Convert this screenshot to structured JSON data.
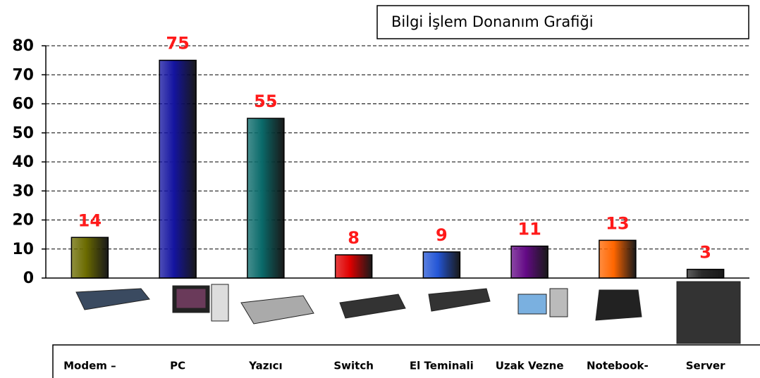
{
  "chart_data": {
    "type": "bar",
    "title": "Bilgi İşlem Donanım Grafiği",
    "categories": [
      "Modem –",
      "PC",
      "Yazıcı",
      "Switch",
      "El Teminali",
      "Uzak Vezne",
      "Notebook-",
      "Server"
    ],
    "values": [
      14,
      75,
      55,
      8,
      9,
      11,
      13,
      3
    ],
    "colors": [
      "#6b6b00",
      "#1414a0",
      "#0a6a6a",
      "#e00000",
      "#2456d6",
      "#640a86",
      "#ff6600",
      "#2a2a2a"
    ],
    "ylim": [
      0,
      80
    ],
    "yticks": [
      0,
      10,
      20,
      30,
      40,
      50,
      60,
      70,
      80
    ],
    "grid": true
  }
}
